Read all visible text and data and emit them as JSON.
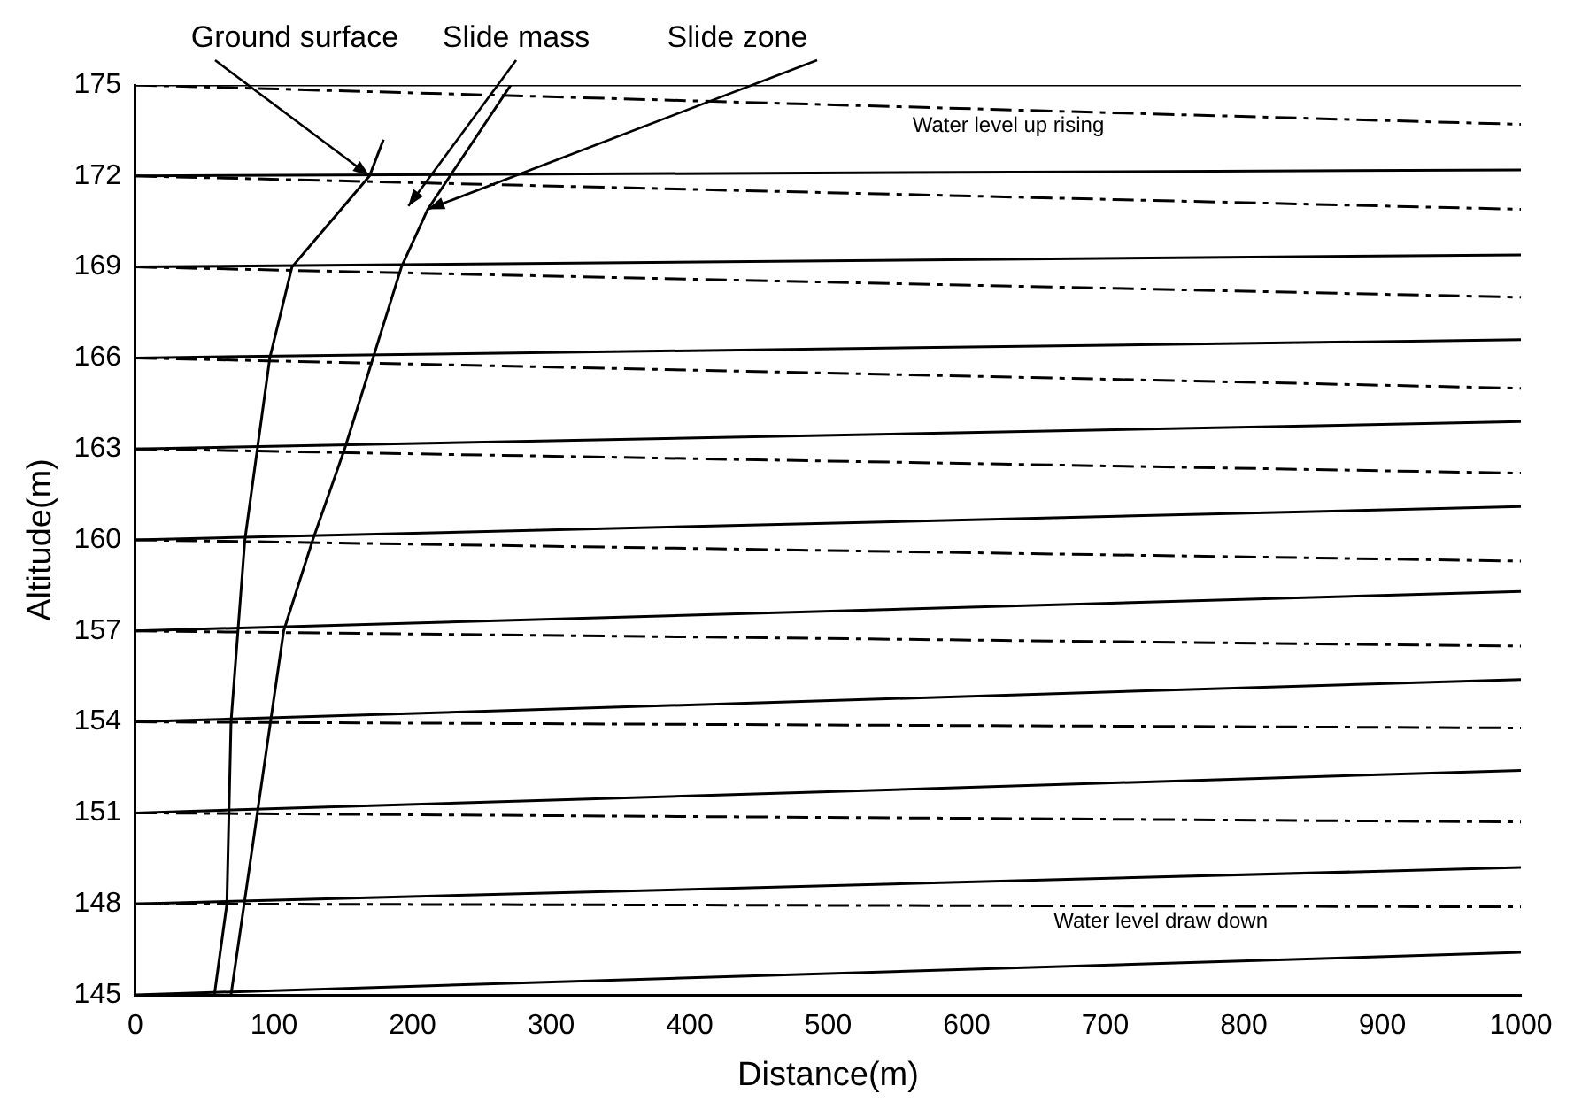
{
  "chart_data": {
    "type": "line",
    "xlabel": "Distance(m)",
    "ylabel": "Altitude(m)",
    "xlim": [
      0,
      1000
    ],
    "ylim": [
      145,
      175
    ],
    "xticks": [
      0,
      100,
      200,
      300,
      400,
      500,
      600,
      700,
      800,
      900,
      1000
    ],
    "yticks": [
      145,
      148,
      151,
      154,
      157,
      160,
      163,
      166,
      169,
      172,
      175
    ],
    "grid": false,
    "legend": false,
    "marker": "none",
    "series": [
      {
        "color": "#000000",
        "line_style": "solid",
        "x": [
          57,
          66,
          69,
          79,
          97,
          113,
          169,
          179
        ],
        "values": [
          145,
          148,
          154,
          160,
          166,
          169,
          172,
          173.2
        ]
      },
      {
        "color": "#000000",
        "line_style": "solid",
        "x": [
          69,
          88,
          107,
          128,
          151,
          192,
          211,
          271
        ],
        "values": [
          145,
          151,
          157,
          160,
          163,
          169,
          170.9,
          175
        ]
      },
      {
        "color": "#000000",
        "line_style": "solid",
        "x": [
          0,
          1000
        ],
        "values": [
          175,
          175
        ]
      },
      {
        "color": "#000000",
        "line_style": "solid",
        "x": [
          0,
          1000
        ],
        "values": [
          172,
          172.2
        ]
      },
      {
        "color": "#000000",
        "line_style": "solid",
        "x": [
          0,
          1000
        ],
        "values": [
          169,
          169.4
        ]
      },
      {
        "color": "#000000",
        "line_style": "solid",
        "x": [
          0,
          1000
        ],
        "values": [
          166,
          166.6
        ]
      },
      {
        "color": "#000000",
        "line_style": "solid",
        "x": [
          0,
          1000
        ],
        "values": [
          163,
          163.9
        ]
      },
      {
        "color": "#000000",
        "line_style": "solid",
        "x": [
          0,
          1000
        ],
        "values": [
          160,
          161.1
        ]
      },
      {
        "color": "#000000",
        "line_style": "solid",
        "x": [
          0,
          1000
        ],
        "values": [
          157,
          158.3
        ]
      },
      {
        "color": "#000000",
        "line_style": "solid",
        "x": [
          0,
          1000
        ],
        "values": [
          154,
          155.4
        ]
      },
      {
        "color": "#000000",
        "line_style": "solid",
        "x": [
          0,
          1000
        ],
        "values": [
          151,
          152.4
        ]
      },
      {
        "color": "#000000",
        "line_style": "solid",
        "x": [
          0,
          1000
        ],
        "values": [
          148,
          149.2
        ]
      },
      {
        "color": "#000000",
        "line_style": "solid",
        "x": [
          0,
          1000
        ],
        "values": [
          145,
          146.4
        ]
      },
      {
        "color": "#000000",
        "line_style": "dashed",
        "x": [
          0,
          1000
        ],
        "values": [
          175,
          173.7
        ]
      },
      {
        "color": "#000000",
        "line_style": "dashed",
        "x": [
          0,
          1000
        ],
        "values": [
          172,
          170.9
        ]
      },
      {
        "color": "#000000",
        "line_style": "dashed",
        "x": [
          0,
          1000
        ],
        "values": [
          169,
          168
        ]
      },
      {
        "color": "#000000",
        "line_style": "dashed",
        "x": [
          0,
          1000
        ],
        "values": [
          166,
          165
        ]
      },
      {
        "color": "#000000",
        "line_style": "dashed",
        "x": [
          0,
          1000
        ],
        "values": [
          163,
          162.2
        ]
      },
      {
        "color": "#000000",
        "line_style": "dashed",
        "x": [
          0,
          1000
        ],
        "values": [
          160,
          159.3
        ]
      },
      {
        "color": "#000000",
        "line_style": "dashed",
        "x": [
          0,
          1000
        ],
        "values": [
          157,
          156.5
        ]
      },
      {
        "color": "#000000",
        "line_style": "dashed",
        "x": [
          0,
          1000
        ],
        "values": [
          154,
          153.8
        ]
      },
      {
        "color": "#000000",
        "line_style": "dashed",
        "x": [
          0,
          1000
        ],
        "values": [
          151,
          150.7
        ]
      },
      {
        "color": "#000000",
        "line_style": "dashed",
        "x": [
          0,
          1000
        ],
        "values": [
          148,
          147.9
        ]
      }
    ],
    "annotations": [
      {
        "text": "Ground surface",
        "x": 169,
        "y": 172
      },
      "Slide mass",
      {
        "text": "Slide zone",
        "x": 211,
        "y": 170.9
      },
      "Water level up rising",
      "Water level draw down"
    ]
  }
}
